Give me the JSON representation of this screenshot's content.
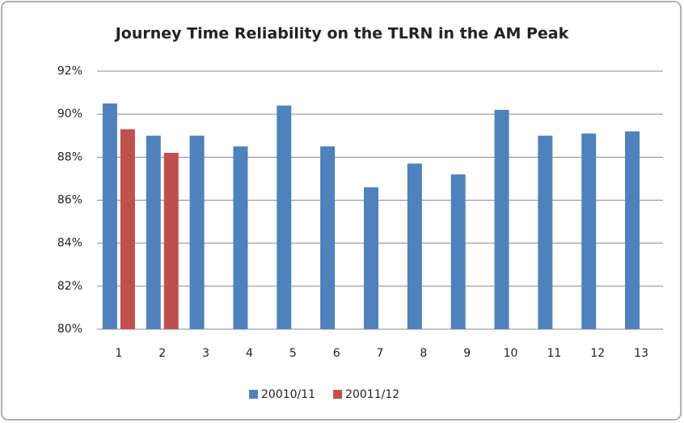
{
  "chart_data": {
    "type": "bar",
    "title": "Journey Time Reliability on  the TLRN in the AM Peak",
    "categories": [
      "1",
      "2",
      "3",
      "4",
      "5",
      "6",
      "7",
      "8",
      "9",
      "10",
      "11",
      "12",
      "13"
    ],
    "series": [
      {
        "name": "20010/11",
        "color": "#4f81bd",
        "values": [
          90.5,
          89.0,
          89.0,
          88.5,
          90.4,
          88.5,
          86.6,
          87.7,
          87.2,
          90.2,
          89.0,
          89.1,
          89.2
        ]
      },
      {
        "name": "20011/12",
        "color": "#c0504d",
        "values": [
          89.3,
          88.2,
          null,
          null,
          null,
          null,
          null,
          null,
          null,
          null,
          null,
          null,
          null
        ]
      }
    ],
    "ylim": [
      80,
      92
    ],
    "yticks": [
      {
        "value": 80,
        "label": "80%"
      },
      {
        "value": 82,
        "label": "82%"
      },
      {
        "value": 84,
        "label": "84%"
      },
      {
        "value": 86,
        "label": "86%"
      },
      {
        "value": 88,
        "label": "88%"
      },
      {
        "value": 90,
        "label": "90%"
      },
      {
        "value": 92,
        "label": "92%"
      }
    ],
    "grid": true,
    "legend": "bottom"
  }
}
